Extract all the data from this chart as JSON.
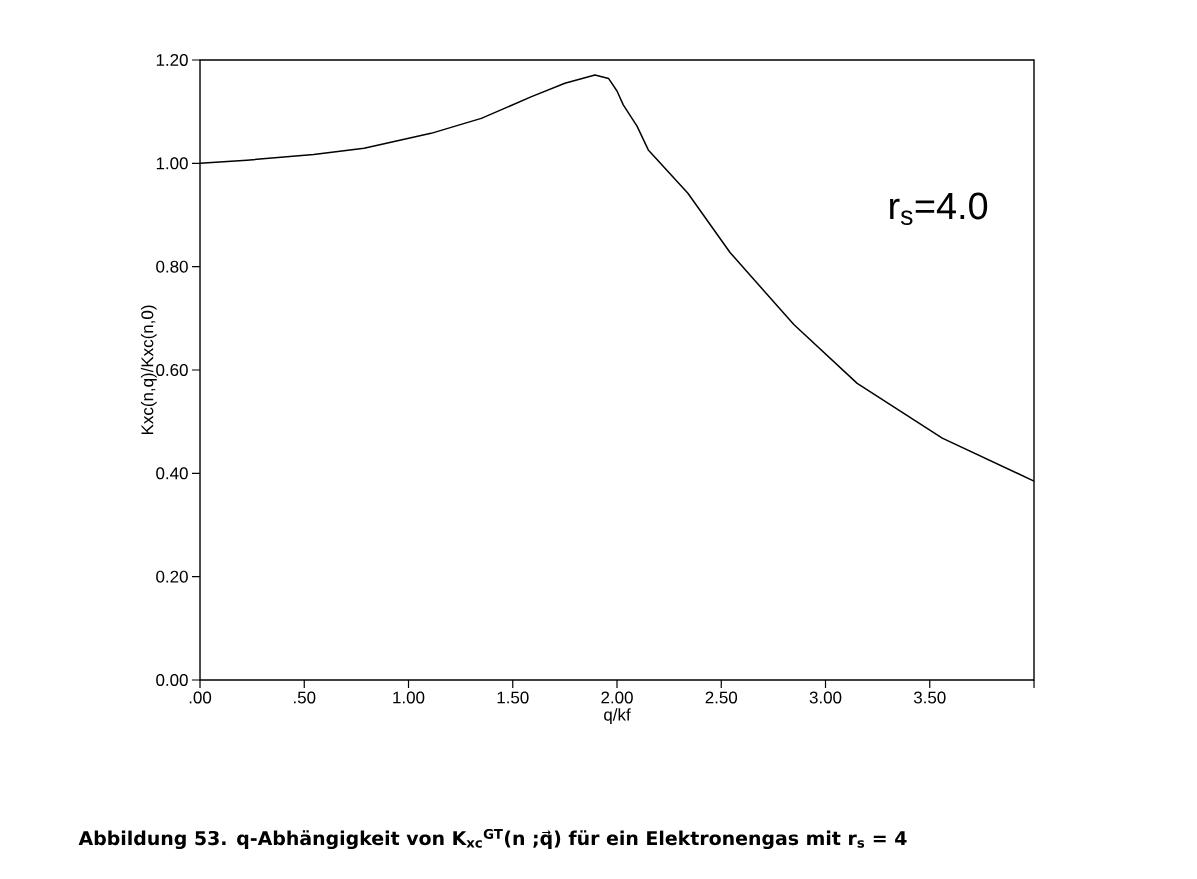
{
  "chart_data": {
    "type": "line",
    "xlabel": "q/kf",
    "ylabel": "Kxc(n,q)/Kxc(n,0)",
    "annotations": [
      "r$_{s}$=4.0",
      "Abbildung 53.  q-Abhängigkeit von K$_{xc}$$^{GT}$(n ;q⃗) für ein Elektronengas mit r$_{s}$ = 4"
    ],
    "xlim": [
      0,
      4.0
    ],
    "ylim": [
      0,
      1.2
    ],
    "xticks": [
      {
        "value": 0,
        "label": ".00"
      },
      {
        "value": 0.5,
        "label": ".50"
      },
      {
        "value": 1,
        "label": "1.00"
      },
      {
        "value": 1.5,
        "label": "1.50"
      },
      {
        "value": 2,
        "label": "2.00"
      },
      {
        "value": 2.5,
        "label": "2.50"
      },
      {
        "value": 3,
        "label": "3.00"
      },
      {
        "value": 3.5,
        "label": "3.50"
      },
      {
        "value": 4,
        "label": null
      }
    ],
    "yticks": [
      {
        "value": 0,
        "label": "0.00"
      },
      {
        "value": 0.2,
        "label": "0.20"
      },
      {
        "value": 0.4,
        "label": "0.40"
      },
      {
        "value": 0.6,
        "label": "0.60"
      },
      {
        "value": 0.8,
        "label": "0.80"
      },
      {
        "value": 1.0,
        "label": "1.00"
      },
      {
        "value": 1.2,
        "label": "1.20"
      }
    ],
    "grid": false,
    "marker": "none",
    "line_style": "solid",
    "series": [
      {
        "color": "#000000",
        "x": [
          0,
          0.225,
          0.545,
          0.787,
          1.108,
          1.349,
          1.59,
          1.75,
          1.894,
          1.96,
          2.0,
          2.03,
          2.096,
          2.15,
          2.34,
          2.543,
          2.848,
          3.152,
          3.56,
          4.0
        ],
        "values": [
          1.0,
          1.006,
          1.017,
          1.029,
          1.058,
          1.087,
          1.129,
          1.155,
          1.171,
          1.164,
          1.14,
          1.113,
          1.072,
          1.026,
          0.942,
          0.827,
          0.688,
          0.574,
          0.468,
          0.385
        ]
      }
    ]
  }
}
